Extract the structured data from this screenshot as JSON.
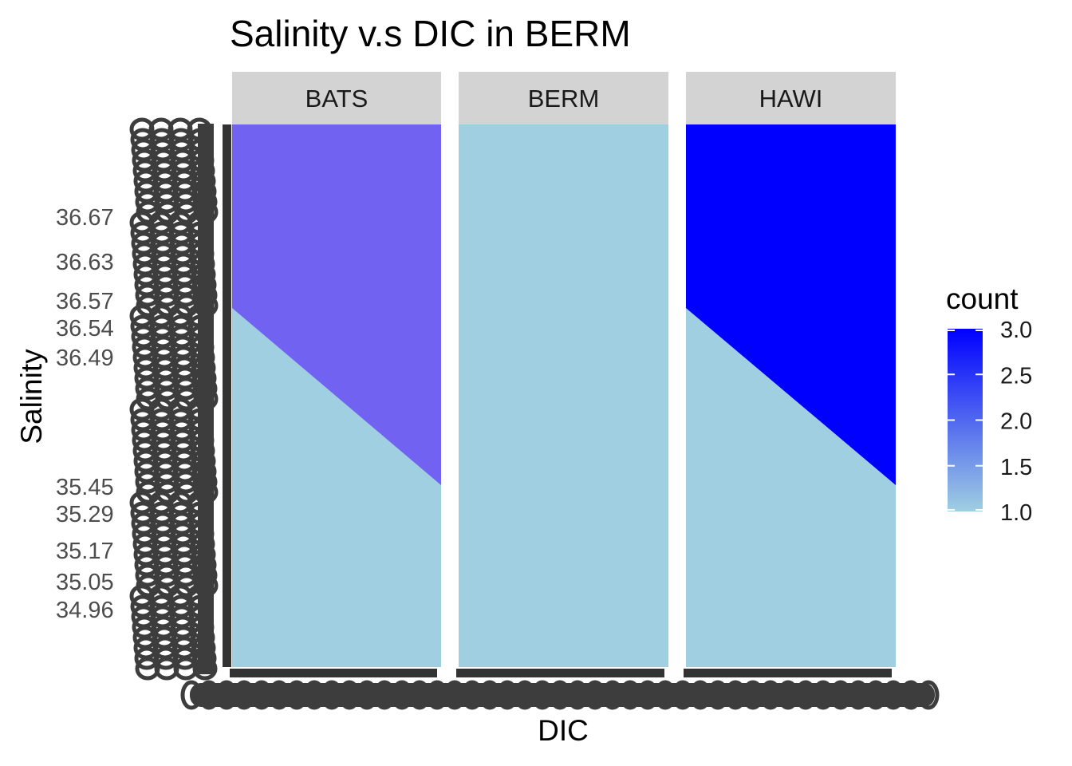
{
  "chart_data": {
    "type": "heatmap",
    "title": "Salinity v.s DIC in BERM",
    "xlabel": "DIC",
    "ylabel": "Salinity",
    "facets": [
      {
        "name": "BATS",
        "fill_high": "#7262F2",
        "fill_low": "#A0CFE1"
      },
      {
        "name": "BERM",
        "fill_high": "#A0CFE1",
        "fill_low": "#A0CFE1"
      },
      {
        "name": "HAWI",
        "fill_high": "#0000FF",
        "fill_low": "#A0CFE1"
      }
    ],
    "y_tick_labels": [
      {
        "label": "36.67",
        "value": 36.67
      },
      {
        "label": "36.63",
        "value": 36.63
      },
      {
        "label": "36.57",
        "value": 36.57
      },
      {
        "label": "36.54",
        "value": 36.54
      },
      {
        "label": "36.49",
        "value": 36.49
      },
      {
        "label": "35.45",
        "value": 35.45
      },
      {
        "label": "35.29",
        "value": 35.29
      },
      {
        "label": "35.17",
        "value": 35.17
      },
      {
        "label": "35.05",
        "value": 35.05
      },
      {
        "label": "34.96",
        "value": 34.96
      }
    ],
    "legend": {
      "title": "count",
      "ticks": [
        "3.0",
        "2.5",
        "2.0",
        "1.5",
        "1.0"
      ],
      "range": [
        1.0,
        3.0
      ],
      "color_low": "#A0CFE1",
      "color_high": "#0000FF",
      "placement": "right"
    },
    "strip_color": "#D3D3D3",
    "axis_color": "#333333",
    "tick_color": "#3D3D3D"
  }
}
